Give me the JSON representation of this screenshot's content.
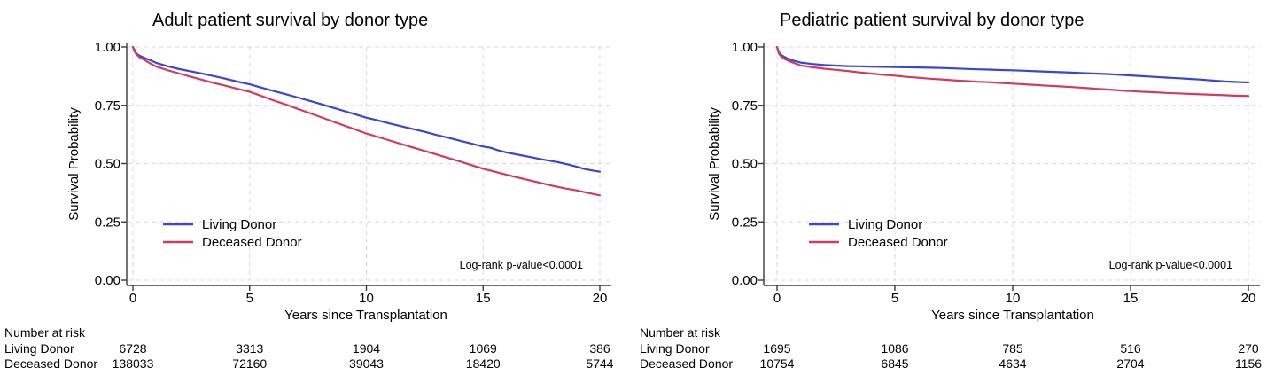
{
  "page": {
    "background": "#ffffff"
  },
  "chart_data": [
    {
      "type": "line",
      "subtype": "kaplan-meier-survival",
      "title": "Adult patient survival by donor type",
      "xlabel": "Years since Transplantation",
      "ylabel": "Survival Probability",
      "xlim": [
        0,
        20
      ],
      "ylim": [
        0.0,
        1.0
      ],
      "x_ticks": [
        "0",
        "5",
        "10",
        "15",
        "20"
      ],
      "x_tick_values": [
        0,
        5,
        10,
        15,
        20
      ],
      "y_ticks": [
        "0.00",
        "0.25",
        "0.50",
        "0.75",
        "1.00"
      ],
      "y_tick_values": [
        0,
        0.25,
        0.5,
        0.75,
        1.0
      ],
      "grid": "dashed",
      "legend_position": "inside-lower-left",
      "annotation": "Log-rank p-value<0.0001",
      "series": [
        {
          "name": "Living Donor",
          "color": "#3a45d1",
          "points": [
            [
              0,
              1.0
            ],
            [
              0.08,
              0.985
            ],
            [
              0.15,
              0.972
            ],
            [
              0.3,
              0.962
            ],
            [
              0.5,
              0.953
            ],
            [
              0.75,
              0.943
            ],
            [
              1,
              0.932
            ],
            [
              1.5,
              0.917
            ],
            [
              2,
              0.905
            ],
            [
              2.5,
              0.895
            ],
            [
              3,
              0.885
            ],
            [
              3.5,
              0.874
            ],
            [
              4,
              0.863
            ],
            [
              4.5,
              0.851
            ],
            [
              5,
              0.84
            ],
            [
              5.5,
              0.826
            ],
            [
              6,
              0.812
            ],
            [
              6.5,
              0.799
            ],
            [
              7,
              0.785
            ],
            [
              7.5,
              0.771
            ],
            [
              8,
              0.757
            ],
            [
              8.5,
              0.742
            ],
            [
              9,
              0.727
            ],
            [
              9.5,
              0.712
            ],
            [
              10,
              0.697
            ],
            [
              10.5,
              0.685
            ],
            [
              11,
              0.672
            ],
            [
              11.5,
              0.66
            ],
            [
              12,
              0.648
            ],
            [
              12.5,
              0.636
            ],
            [
              13,
              0.623
            ],
            [
              13.5,
              0.611
            ],
            [
              14,
              0.598
            ],
            [
              14.5,
              0.586
            ],
            [
              15,
              0.573
            ],
            [
              15.3,
              0.568
            ],
            [
              15.6,
              0.558
            ],
            [
              16,
              0.548
            ],
            [
              16.5,
              0.538
            ],
            [
              17,
              0.528
            ],
            [
              17.4,
              0.52
            ],
            [
              17.8,
              0.513
            ],
            [
              18.2,
              0.506
            ],
            [
              18.6,
              0.497
            ],
            [
              19,
              0.487
            ],
            [
              19.3,
              0.478
            ],
            [
              19.6,
              0.472
            ],
            [
              20,
              0.465
            ]
          ]
        },
        {
          "name": "Deceased Donor",
          "color": "#d23b5f",
          "points": [
            [
              0,
              1.0
            ],
            [
              0.08,
              0.98
            ],
            [
              0.15,
              0.968
            ],
            [
              0.3,
              0.955
            ],
            [
              0.5,
              0.944
            ],
            [
              0.75,
              0.929
            ],
            [
              1,
              0.916
            ],
            [
              1.5,
              0.9
            ],
            [
              2,
              0.886
            ],
            [
              2.5,
              0.872
            ],
            [
              3,
              0.858
            ],
            [
              3.5,
              0.845
            ],
            [
              4,
              0.833
            ],
            [
              4.5,
              0.82
            ],
            [
              5,
              0.808
            ],
            [
              5.5,
              0.79
            ],
            [
              6,
              0.772
            ],
            [
              6.5,
              0.755
            ],
            [
              7,
              0.737
            ],
            [
              7.5,
              0.719
            ],
            [
              8,
              0.701
            ],
            [
              8.5,
              0.683
            ],
            [
              9,
              0.665
            ],
            [
              9.5,
              0.647
            ],
            [
              10,
              0.629
            ],
            [
              10.5,
              0.614
            ],
            [
              11,
              0.599
            ],
            [
              11.5,
              0.584
            ],
            [
              12,
              0.569
            ],
            [
              12.5,
              0.554
            ],
            [
              13,
              0.539
            ],
            [
              13.5,
              0.524
            ],
            [
              14,
              0.509
            ],
            [
              14.5,
              0.493
            ],
            [
              15,
              0.478
            ],
            [
              15.5,
              0.465
            ],
            [
              16,
              0.452
            ],
            [
              16.5,
              0.44
            ],
            [
              17,
              0.428
            ],
            [
              17.5,
              0.416
            ],
            [
              18,
              0.404
            ],
            [
              18.5,
              0.394
            ],
            [
              19,
              0.385
            ],
            [
              19.5,
              0.374
            ],
            [
              20,
              0.364
            ]
          ]
        }
      ],
      "risk_table": {
        "header": "Number at risk",
        "time_points": [
          0,
          5,
          10,
          15,
          20
        ],
        "rows": [
          {
            "label": "Living Donor",
            "values": [
              "6728",
              "3313",
              "1904",
              "1069",
              "386"
            ]
          },
          {
            "label": "Deceased Donor",
            "values": [
              "138033",
              "72160",
              "39043",
              "18420",
              "5744"
            ]
          }
        ]
      }
    },
    {
      "type": "line",
      "subtype": "kaplan-meier-survival",
      "title": "Pediatric patient survival by donor type",
      "xlabel": "Years since Transplantation",
      "ylabel": "Survival Probability",
      "xlim": [
        0,
        20
      ],
      "ylim": [
        0.0,
        1.0
      ],
      "x_ticks": [
        "0",
        "5",
        "10",
        "15",
        "20"
      ],
      "x_tick_values": [
        0,
        5,
        10,
        15,
        20
      ],
      "y_ticks": [
        "0.00",
        "0.25",
        "0.50",
        "0.75",
        "1.00"
      ],
      "y_tick_values": [
        0,
        0.25,
        0.5,
        0.75,
        1.0
      ],
      "grid": "dashed",
      "legend_position": "inside-lower-left",
      "annotation": "Log-rank p-value<0.0001",
      "series": [
        {
          "name": "Living Donor",
          "color": "#3a45d1",
          "points": [
            [
              0,
              1.0
            ],
            [
              0.08,
              0.978
            ],
            [
              0.15,
              0.968
            ],
            [
              0.3,
              0.958
            ],
            [
              0.5,
              0.948
            ],
            [
              0.75,
              0.94
            ],
            [
              1,
              0.933
            ],
            [
              1.5,
              0.927
            ],
            [
              2,
              0.923
            ],
            [
              2.5,
              0.92
            ],
            [
              3,
              0.918
            ],
            [
              3.5,
              0.917
            ],
            [
              4,
              0.916
            ],
            [
              4.5,
              0.915
            ],
            [
              5,
              0.914
            ],
            [
              5.5,
              0.913
            ],
            [
              6,
              0.912
            ],
            [
              6.5,
              0.911
            ],
            [
              7,
              0.91
            ],
            [
              7.5,
              0.908
            ],
            [
              8,
              0.906
            ],
            [
              8.5,
              0.904
            ],
            [
              9,
              0.903
            ],
            [
              9.5,
              0.901
            ],
            [
              10,
              0.9
            ],
            [
              10.5,
              0.898
            ],
            [
              11,
              0.896
            ],
            [
              11.5,
              0.894
            ],
            [
              12,
              0.892
            ],
            [
              12.5,
              0.89
            ],
            [
              13,
              0.888
            ],
            [
              13.5,
              0.886
            ],
            [
              14,
              0.884
            ],
            [
              14.5,
              0.881
            ],
            [
              15,
              0.878
            ],
            [
              15.5,
              0.875
            ],
            [
              16,
              0.872
            ],
            [
              16.5,
              0.869
            ],
            [
              17,
              0.866
            ],
            [
              17.5,
              0.863
            ],
            [
              18,
              0.86
            ],
            [
              18.5,
              0.856
            ],
            [
              19,
              0.852
            ],
            [
              19.5,
              0.85
            ],
            [
              20,
              0.848
            ]
          ]
        },
        {
          "name": "Deceased Donor",
          "color": "#d23b5f",
          "points": [
            [
              0,
              1.0
            ],
            [
              0.08,
              0.972
            ],
            [
              0.15,
              0.962
            ],
            [
              0.3,
              0.95
            ],
            [
              0.5,
              0.94
            ],
            [
              0.75,
              0.93
            ],
            [
              1,
              0.921
            ],
            [
              1.5,
              0.913
            ],
            [
              2,
              0.907
            ],
            [
              2.5,
              0.902
            ],
            [
              3,
              0.897
            ],
            [
              3.5,
              0.891
            ],
            [
              4,
              0.886
            ],
            [
              4.5,
              0.881
            ],
            [
              5,
              0.877
            ],
            [
              5.5,
              0.872
            ],
            [
              6,
              0.868
            ],
            [
              6.5,
              0.864
            ],
            [
              7,
              0.861
            ],
            [
              7.5,
              0.857
            ],
            [
              8,
              0.854
            ],
            [
              8.5,
              0.851
            ],
            [
              9,
              0.849
            ],
            [
              9.5,
              0.846
            ],
            [
              10,
              0.843
            ],
            [
              10.5,
              0.84
            ],
            [
              11,
              0.837
            ],
            [
              11.5,
              0.834
            ],
            [
              12,
              0.831
            ],
            [
              12.5,
              0.828
            ],
            [
              13,
              0.825
            ],
            [
              13.5,
              0.821
            ],
            [
              14,
              0.818
            ],
            [
              14.5,
              0.814
            ],
            [
              15,
              0.811
            ],
            [
              15.5,
              0.808
            ],
            [
              16,
              0.806
            ],
            [
              16.5,
              0.803
            ],
            [
              17,
              0.801
            ],
            [
              17.5,
              0.799
            ],
            [
              18,
              0.797
            ],
            [
              18.5,
              0.795
            ],
            [
              19,
              0.793
            ],
            [
              19.5,
              0.791
            ],
            [
              20,
              0.79
            ]
          ]
        }
      ],
      "risk_table": {
        "header": "Number at risk",
        "time_points": [
          0,
          5,
          10,
          15,
          20
        ],
        "rows": [
          {
            "label": "Living Donor",
            "values": [
              "1695",
              "1086",
              "785",
              "516",
              "270"
            ]
          },
          {
            "label": "Deceased Donor",
            "values": [
              "10754",
              "6845",
              "4634",
              "2704",
              "1156"
            ]
          }
        ]
      }
    }
  ],
  "style": {
    "gridline_color": "#d9d9d9",
    "axis_color": "#3a3a3a",
    "text_color": "#000000"
  }
}
